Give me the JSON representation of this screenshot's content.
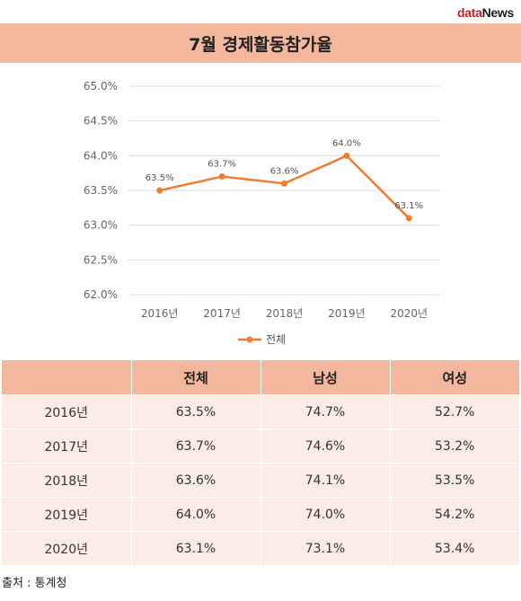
{
  "logo": {
    "data": "data",
    "news": "News"
  },
  "title": "7월 경제활동참가율",
  "chart_data": {
    "type": "line",
    "categories": [
      "2016년",
      "2017년",
      "2018년",
      "2019년",
      "2020년"
    ],
    "series": [
      {
        "name": "전체",
        "values": [
          63.5,
          63.7,
          63.6,
          64.0,
          63.1
        ],
        "labels": [
          "63.5%",
          "63.7%",
          "63.6%",
          "64.0%",
          "63.1%"
        ],
        "color": "#ed7d31"
      }
    ],
    "ylim": [
      62.0,
      65.0
    ],
    "yticks": [
      65.0,
      64.5,
      64.0,
      63.5,
      63.0,
      62.5,
      62.0
    ],
    "ytick_labels": [
      "65.0%",
      "64.5%",
      "64.0%",
      "63.5%",
      "63.0%",
      "62.5%",
      "62.0%"
    ],
    "grid": true,
    "legend": "bottom"
  },
  "table": {
    "headers": [
      "",
      "전체",
      "남성",
      "여성"
    ],
    "rows": [
      [
        "2016년",
        "63.5%",
        "74.7%",
        "52.7%"
      ],
      [
        "2017년",
        "63.7%",
        "74.6%",
        "53.2%"
      ],
      [
        "2018년",
        "63.6%",
        "74.1%",
        "53.5%"
      ],
      [
        "2019년",
        "64.0%",
        "74.0%",
        "54.2%"
      ],
      [
        "2020년",
        "63.1%",
        "73.1%",
        "53.4%"
      ]
    ]
  },
  "source": "출처 : 통계청"
}
